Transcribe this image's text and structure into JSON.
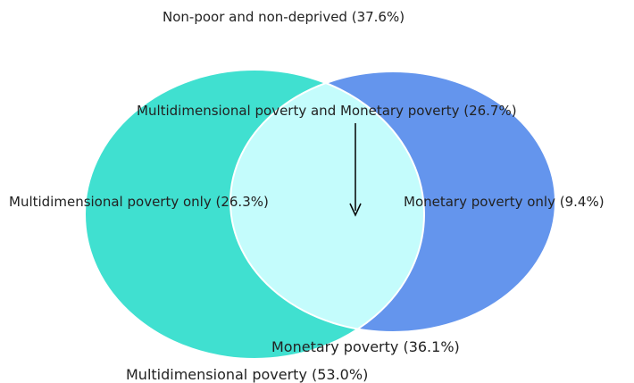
{
  "colors": {
    "multidimensional_only": "#40E0D0",
    "monetary_only": "#6495ED",
    "intersection": "#C4FCFC",
    "outline": "#ffffff",
    "arrow": "#000000"
  },
  "labels": {
    "top": "Non-poor and non-deprived (37.6%)",
    "intersection": "Multidimensional poverty and Monetary poverty (26.7%)",
    "multidimensional_only": "Multidimensional poverty only (26.3%)",
    "monetary_only": "Monetary poverty only (9.4%)",
    "monetary_total": "Monetary poverty (36.1%)",
    "multidimensional_total": "Multidimensional poverty (53.0%)"
  }
}
